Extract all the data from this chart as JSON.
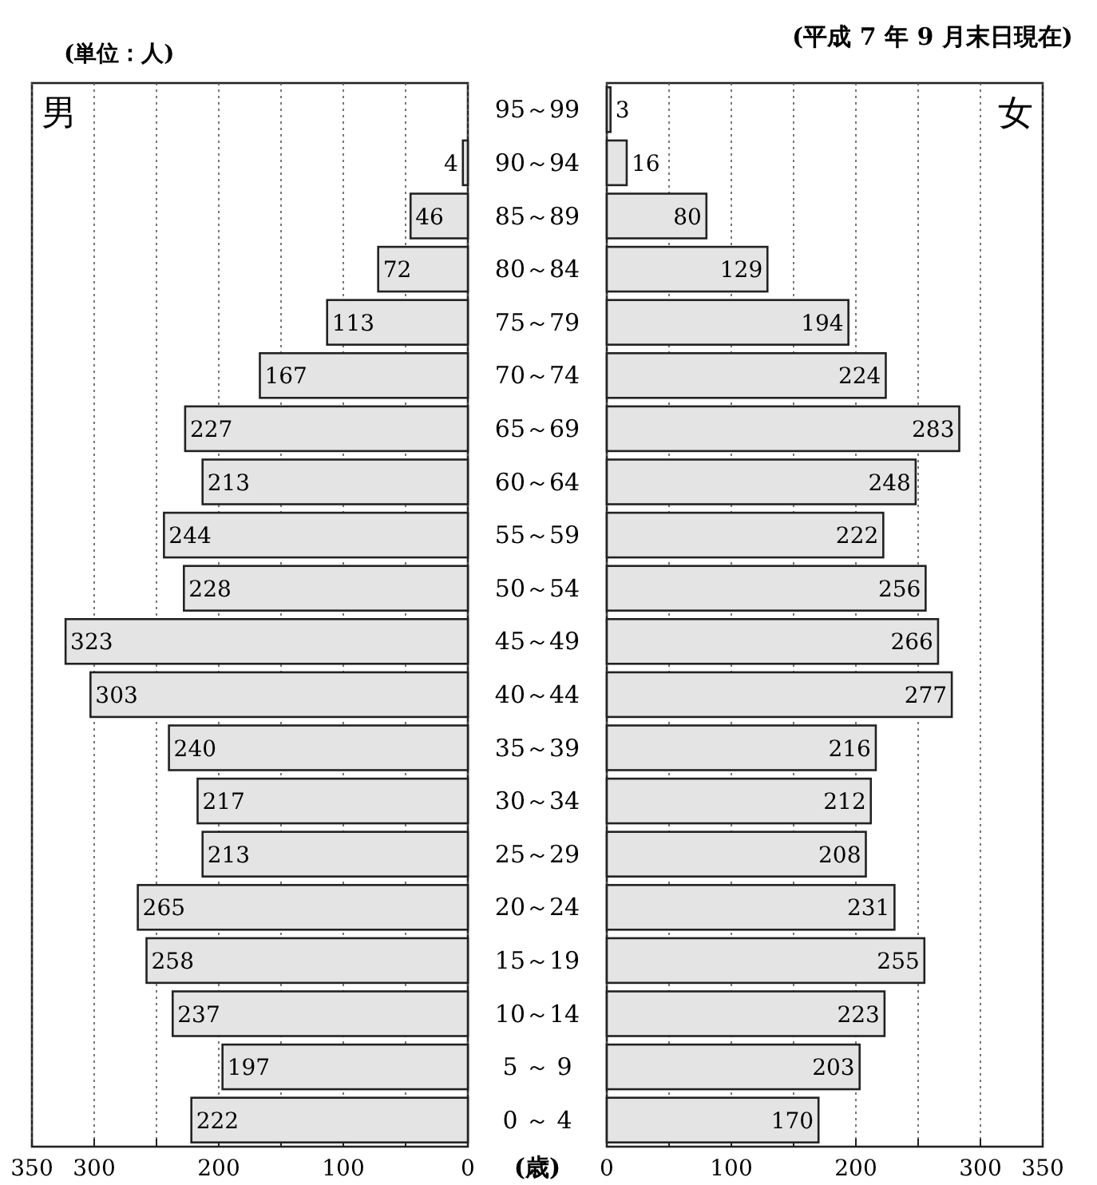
{
  "chart_data": [
    {
      "type": "bar",
      "orientation": "horizontal",
      "categories": [
        "95～99",
        "90～94",
        "85～89",
        "80～84",
        "75～79",
        "70～74",
        "65～69",
        "60～64",
        "55～59",
        "50～54",
        "45～49",
        "40～44",
        "35～39",
        "30～34",
        "25～29",
        "20～24",
        "15～19",
        "10～14",
        "5 ～ 9",
        "0 ～ 4"
      ],
      "series": [
        {
          "name": "男",
          "color": "#e4e4e4",
          "values": [
            null,
            4,
            46,
            72,
            113,
            167,
            227,
            213,
            244,
            228,
            323,
            303,
            240,
            217,
            213,
            265,
            258,
            237,
            197,
            222
          ]
        }
      ],
      "xlim": [
        350,
        0
      ],
      "xticks": [
        350,
        300,
        {
          "value": 250,
          "label": null
        },
        200,
        {
          "value": 150,
          "label": null
        },
        100,
        {
          "value": 50,
          "label": null
        },
        0
      ],
      "grid": "x",
      "data_labels": true,
      "annotations": [
        "(単位：人)",
        "(歳)"
      ]
    },
    {
      "type": "bar",
      "orientation": "horizontal",
      "categories": [
        null,
        null,
        null,
        null,
        null,
        null,
        null,
        null,
        null,
        null,
        null,
        null,
        null,
        null,
        null,
        null,
        null,
        null,
        null,
        null
      ],
      "series": [
        {
          "name": "女",
          "color": "#e4e4e4",
          "values": [
            3,
            16,
            80,
            129,
            194,
            224,
            283,
            248,
            222,
            256,
            266,
            277,
            216,
            212,
            208,
            231,
            255,
            223,
            203,
            170
          ]
        }
      ],
      "xlim": [
        0,
        350
      ],
      "xticks": [
        0,
        {
          "value": 50,
          "label": null
        },
        100,
        {
          "value": 150,
          "label": null
        },
        200,
        {
          "value": 250,
          "label": null
        },
        300,
        350
      ],
      "grid": "x",
      "data_labels": true,
      "tick_labels": "x",
      "annotations": [
        "(平成 7 年 9 月末日現在)"
      ]
    }
  ]
}
